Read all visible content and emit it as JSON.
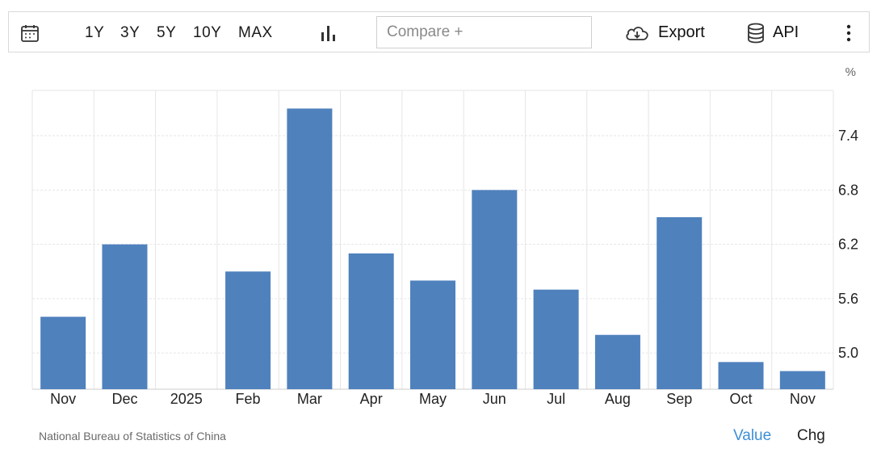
{
  "toolbar": {
    "calendar_icon": "calendar-icon",
    "ranges": [
      "1Y",
      "3Y",
      "5Y",
      "10Y",
      "MAX"
    ],
    "chart_type_icon": "bar-chart-icon",
    "compare_placeholder": "Compare +",
    "export_label": "Export",
    "export_icon": "cloud-download-icon",
    "api_label": "API",
    "api_icon": "database-icon",
    "more_icon": "more-vertical-icon"
  },
  "footer": {
    "source": "National Bureau of Statistics of China",
    "value_label": "Value",
    "chg_label": "Chg"
  },
  "colors": {
    "bar": "#4f81bd",
    "active_mode": "#3d8fd6",
    "grid": "#e6e6e6"
  },
  "chart_data": {
    "type": "bar",
    "title": "",
    "xlabel": "",
    "ylabel": "%",
    "categories": [
      "Nov",
      "Dec",
      "2025",
      "Feb",
      "Mar",
      "Apr",
      "May",
      "Jun",
      "Jul",
      "Aug",
      "Sep",
      "Oct",
      "Nov"
    ],
    "values": [
      5.4,
      6.2,
      null,
      5.9,
      7.7,
      6.1,
      5.8,
      6.8,
      5.7,
      5.2,
      6.5,
      4.9,
      4.8
    ],
    "yticks": [
      "5.0",
      "5.6",
      "6.2",
      "6.8",
      "7.4"
    ],
    "ylim": [
      4.6,
      7.9
    ],
    "grid": true,
    "y_axis_position": "right"
  }
}
